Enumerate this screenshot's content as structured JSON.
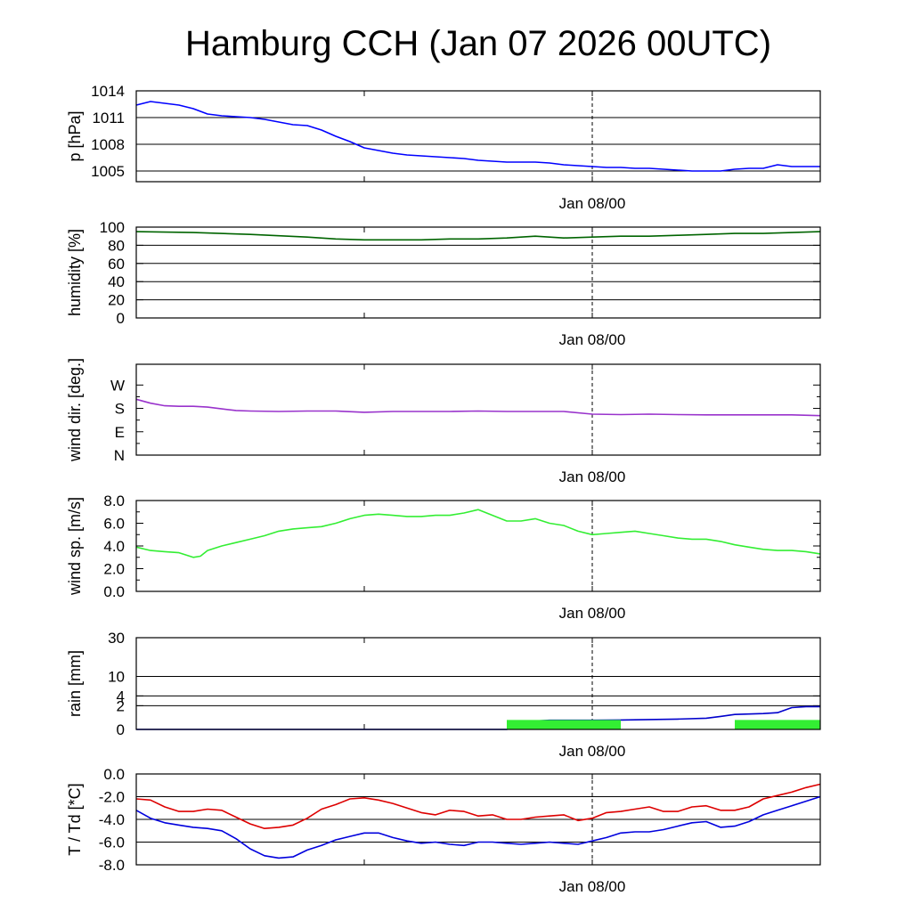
{
  "title": "Hamburg CCH (Jan 07 2026 00UTC)",
  "time_label": "Jan 08/00",
  "chart_data": [
    {
      "type": "line",
      "id": "pressure",
      "ylabel": "p [hPa]",
      "ylim": [
        1003.8,
        1014
      ],
      "ticks": [
        1005,
        1008,
        1011,
        1014
      ],
      "tick_labels": [
        "1005",
        "1008",
        "1011",
        "1014"
      ],
      "grid": true,
      "x_range_hours": [
        0,
        48
      ],
      "series": [
        {
          "name": "pressure",
          "color": "#0000ff",
          "x": [
            0,
            1,
            2,
            3,
            4,
            5,
            6,
            7,
            8,
            9,
            10,
            11,
            12,
            13,
            14,
            15,
            16,
            17,
            18,
            19,
            20,
            21,
            22,
            23,
            24,
            25,
            26,
            27,
            28,
            29,
            30,
            31,
            32,
            33,
            34,
            35,
            36,
            37,
            38,
            39,
            40,
            41,
            42,
            43,
            44,
            45,
            46,
            47,
            48
          ],
          "values": [
            1012.4,
            1012.8,
            1012.6,
            1012.4,
            1012.0,
            1011.4,
            1011.2,
            1011.1,
            1011.0,
            1010.8,
            1010.5,
            1010.2,
            1010.1,
            1009.6,
            1008.9,
            1008.3,
            1007.6,
            1007.3,
            1007.0,
            1006.8,
            1006.7,
            1006.6,
            1006.5,
            1006.4,
            1006.2,
            1006.1,
            1006.0,
            1006.0,
            1006.0,
            1005.9,
            1005.7,
            1005.6,
            1005.5,
            1005.4,
            1005.4,
            1005.3,
            1005.3,
            1005.2,
            1005.1,
            1005.0,
            1005.0,
            1005.0,
            1005.2,
            1005.3,
            1005.3,
            1005.7,
            1005.5,
            1005.5,
            1005.5
          ]
        }
      ]
    },
    {
      "type": "line",
      "id": "humidity",
      "ylabel": "humidity [%]",
      "ylim": [
        0,
        100
      ],
      "ticks": [
        0,
        20,
        40,
        60,
        80,
        100
      ],
      "tick_labels": [
        "0",
        "20",
        "40",
        "60",
        "80",
        "100"
      ],
      "grid": true,
      "x_range_hours": [
        0,
        48
      ],
      "series": [
        {
          "name": "humidity",
          "color": "#006400",
          "x": [
            0,
            4,
            8,
            12,
            14,
            16,
            18,
            20,
            22,
            24,
            26,
            28,
            30,
            32,
            34,
            36,
            38,
            40,
            42,
            44,
            46,
            48
          ],
          "values": [
            95,
            94,
            92,
            89,
            87,
            86,
            86,
            86,
            87,
            87,
            88,
            90,
            88,
            89,
            90,
            90,
            91,
            92,
            93,
            93,
            94,
            95
          ]
        }
      ]
    },
    {
      "type": "line",
      "id": "wind_direction",
      "ylabel": "wind dir. [deg.]",
      "ylim": [
        0,
        350
      ],
      "ticks": [
        0,
        90,
        180,
        270
      ],
      "tick_labels": [
        "N",
        "E",
        "S",
        "W"
      ],
      "grid": false,
      "x_range_hours": [
        0,
        48
      ],
      "series": [
        {
          "name": "wind direction",
          "color": "#9933cc",
          "x": [
            0,
            1,
            2,
            3,
            4,
            5,
            6,
            7,
            8,
            10,
            12,
            14,
            16,
            18,
            20,
            22,
            24,
            26,
            28,
            30,
            32,
            34,
            36,
            38,
            40,
            42,
            44,
            46,
            48
          ],
          "values": [
            215,
            200,
            190,
            188,
            188,
            185,
            178,
            172,
            170,
            168,
            170,
            170,
            165,
            168,
            168,
            168,
            170,
            168,
            168,
            168,
            158,
            156,
            158,
            156,
            155,
            155,
            155,
            155,
            152
          ]
        }
      ]
    },
    {
      "type": "line",
      "id": "wind_speed",
      "ylabel": "wind sp. [m/s]",
      "ylim": [
        0,
        8
      ],
      "ticks": [
        0,
        2,
        4,
        6,
        8
      ],
      "tick_labels": [
        "0.0",
        "2.0",
        "4.0",
        "6.0",
        "8.0"
      ],
      "grid": false,
      "x_range_hours": [
        0,
        48
      ],
      "series": [
        {
          "name": "wind speed",
          "color": "#33ee33",
          "x": [
            0,
            1,
            2,
            3,
            4,
            4.5,
            5,
            6,
            7,
            8,
            9,
            10,
            11,
            12,
            13,
            14,
            15,
            16,
            17,
            18,
            19,
            20,
            21,
            22,
            23,
            24,
            25,
            26,
            27,
            28,
            29,
            30,
            31,
            32,
            33,
            34,
            35,
            36,
            37,
            38,
            39,
            40,
            41,
            42,
            43,
            44,
            45,
            46,
            47,
            48
          ],
          "values": [
            3.9,
            3.6,
            3.5,
            3.4,
            3.0,
            3.1,
            3.6,
            4.0,
            4.3,
            4.6,
            4.9,
            5.3,
            5.5,
            5.6,
            5.7,
            6.0,
            6.4,
            6.7,
            6.8,
            6.7,
            6.6,
            6.6,
            6.7,
            6.7,
            6.9,
            7.2,
            6.7,
            6.2,
            6.2,
            6.4,
            6.0,
            5.8,
            5.3,
            5.0,
            5.1,
            5.2,
            5.3,
            5.1,
            4.9,
            4.7,
            4.6,
            4.6,
            4.4,
            4.1,
            3.9,
            3.7,
            3.6,
            3.6,
            3.5,
            3.3
          ]
        }
      ]
    },
    {
      "type": "area",
      "id": "rain",
      "ylabel": "rain [mm]",
      "scale": "sqrt",
      "ylim": [
        0,
        30
      ],
      "ticks": [
        0,
        2,
        4,
        10,
        30
      ],
      "tick_labels": [
        "0",
        "2",
        "4",
        "10",
        "30"
      ],
      "grid": true,
      "x_range_hours": [
        0,
        48
      ],
      "series": [
        {
          "name": "accumulated rain",
          "color": "#0000cc",
          "x": [
            0,
            26,
            27,
            28,
            29,
            32,
            34,
            36,
            38,
            40,
            41,
            42,
            43,
            44,
            45,
            46,
            47,
            48
          ],
          "values": [
            0,
            0,
            0.05,
            0.25,
            0.3,
            0.3,
            0.32,
            0.35,
            0.38,
            0.45,
            0.6,
            0.8,
            0.85,
            0.9,
            1.0,
            1.7,
            1.85,
            1.85
          ]
        },
        {
          "name": "precipitation periods",
          "color": "#33ee33",
          "intervals": [
            [
              26,
              34
            ],
            [
              42,
              48
            ]
          ],
          "values": [
            0.32,
            0.32
          ]
        }
      ]
    },
    {
      "type": "line",
      "id": "temperature",
      "ylabel": "T / Td [*C]",
      "ylim": [
        -8,
        0
      ],
      "ticks": [
        -8,
        -6,
        -4,
        -2,
        0
      ],
      "tick_labels": [
        "-8.0",
        "-6.0",
        "-4.0",
        "-2.0",
        "0.0"
      ],
      "grid": true,
      "x_range_hours": [
        0,
        48
      ],
      "series": [
        {
          "name": "T",
          "color": "#dd0000",
          "x": [
            0,
            1,
            2,
            3,
            4,
            5,
            6,
            7,
            8,
            9,
            10,
            11,
            12,
            13,
            14,
            15,
            16,
            17,
            18,
            19,
            20,
            21,
            22,
            23,
            24,
            25,
            26,
            27,
            28,
            29,
            30,
            31,
            32,
            33,
            34,
            35,
            36,
            37,
            38,
            39,
            40,
            41,
            42,
            43,
            44,
            45,
            46,
            47,
            48
          ],
          "values": [
            -2.2,
            -2.3,
            -2.9,
            -3.3,
            -3.3,
            -3.1,
            -3.2,
            -3.8,
            -4.4,
            -4.8,
            -4.7,
            -4.5,
            -3.9,
            -3.1,
            -2.7,
            -2.2,
            -2.1,
            -2.3,
            -2.6,
            -3.0,
            -3.4,
            -3.6,
            -3.2,
            -3.3,
            -3.7,
            -3.6,
            -4.0,
            -4.0,
            -3.8,
            -3.7,
            -3.6,
            -4.1,
            -3.9,
            -3.4,
            -3.3,
            -3.1,
            -2.9,
            -3.3,
            -3.3,
            -2.9,
            -2.8,
            -3.2,
            -3.2,
            -2.9,
            -2.2,
            -1.9,
            -1.6,
            -1.2,
            -0.9
          ]
        },
        {
          "name": "Td",
          "color": "#0000dd",
          "x": [
            0,
            1,
            2,
            3,
            4,
            5,
            6,
            7,
            8,
            9,
            10,
            11,
            12,
            13,
            14,
            15,
            16,
            17,
            18,
            19,
            20,
            21,
            22,
            23,
            24,
            25,
            26,
            27,
            28,
            29,
            30,
            31,
            32,
            33,
            34,
            35,
            36,
            37,
            38,
            39,
            40,
            41,
            42,
            43,
            44,
            45,
            46,
            47,
            48
          ],
          "values": [
            -3.2,
            -3.9,
            -4.3,
            -4.5,
            -4.7,
            -4.8,
            -5.0,
            -5.7,
            -6.6,
            -7.2,
            -7.4,
            -7.3,
            -6.7,
            -6.3,
            -5.8,
            -5.5,
            -5.2,
            -5.2,
            -5.6,
            -5.9,
            -6.1,
            -6.0,
            -6.2,
            -6.3,
            -6.0,
            -6.0,
            -6.1,
            -6.2,
            -6.1,
            -6.0,
            -6.1,
            -6.2,
            -5.9,
            -5.6,
            -5.2,
            -5.1,
            -5.1,
            -4.9,
            -4.6,
            -4.3,
            -4.2,
            -4.7,
            -4.6,
            -4.2,
            -3.6,
            -3.2,
            -2.8,
            -2.4,
            -2.0
          ]
        }
      ]
    }
  ]
}
